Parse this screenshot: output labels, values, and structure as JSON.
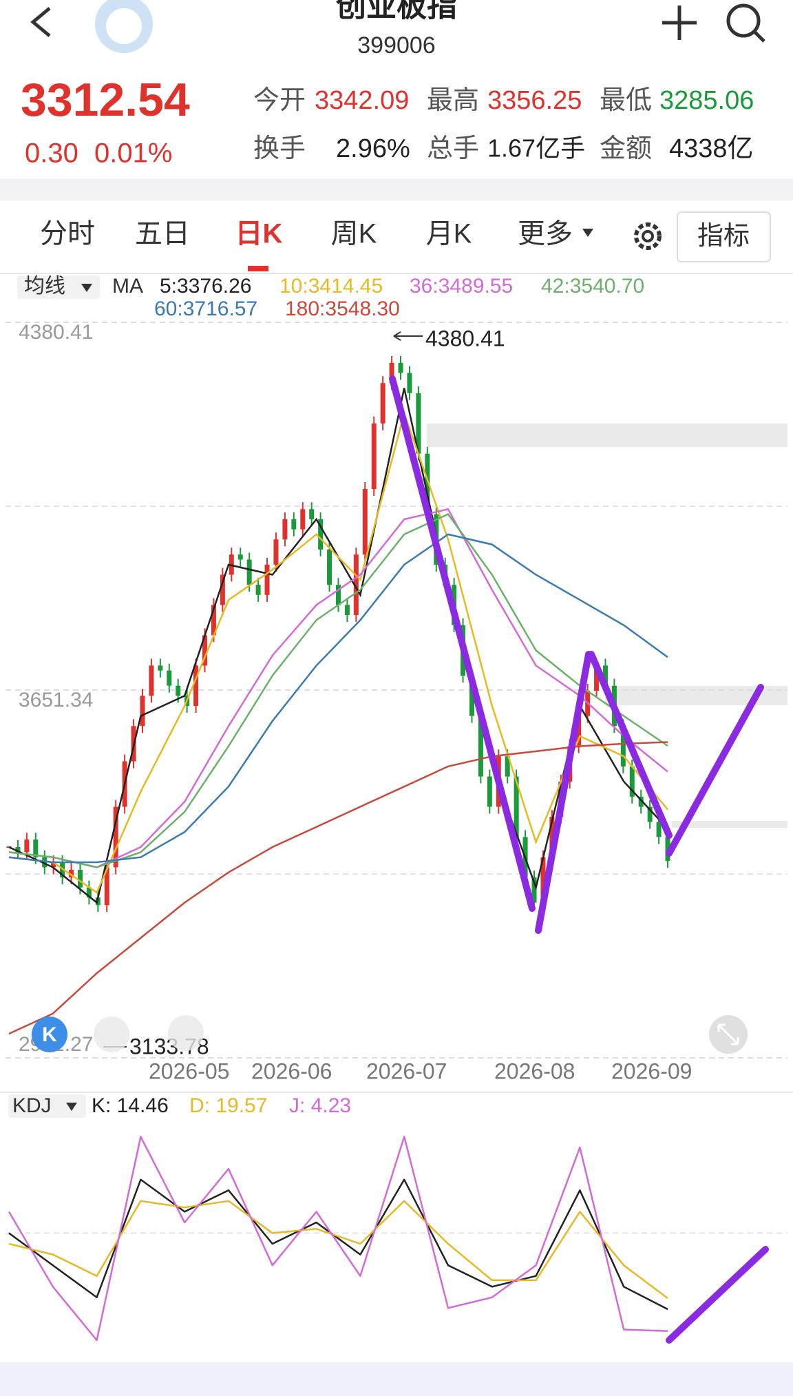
{
  "header": {
    "title": "创业板指",
    "code": "399006"
  },
  "quote": {
    "price": "3312.54",
    "change": "0.30",
    "change_pct": "0.01%",
    "stats": [
      {
        "label": "今开",
        "value": "3342.09"
      },
      {
        "label": "最高",
        "value": "3356.25"
      },
      {
        "label": "最低",
        "value": "3285.06"
      },
      {
        "label": "换手",
        "value": "2.96%"
      },
      {
        "label": "总手",
        "value": "1.67亿手"
      },
      {
        "label": "金额",
        "value": "4338亿"
      }
    ]
  },
  "tabs": [
    "分时",
    "五日",
    "日K",
    "周K",
    "月K",
    "更多"
  ],
  "indicator_button": "指标",
  "chart_data": [
    {
      "type": "candlestick",
      "ma_selector": "均线",
      "ma_label": "MA",
      "ylim": [
        2922.27,
        4380.41
      ],
      "yticks": [
        4380.41,
        3651.34,
        2922.27
      ],
      "xticks": [
        "2026-05",
        "2026-06",
        "2026-07",
        "2026-08",
        "2026-09"
      ],
      "annotations": [
        4380.41,
        3133.78
      ],
      "up_color": "#e0322d",
      "down_color": "#1a9a3a",
      "close": [
        3340,
        3330,
        3355,
        3320,
        3300,
        3310,
        3280,
        3295,
        3260,
        3240,
        3225,
        3300,
        3420,
        3510,
        3580,
        3640,
        3700,
        3690,
        3660,
        3640,
        3620,
        3700,
        3760,
        3820,
        3880,
        3920,
        3910,
        3860,
        3840,
        3900,
        3950,
        3990,
        3970,
        4010,
        3990,
        3930,
        3860,
        3820,
        3800,
        3920,
        4050,
        4180,
        4260,
        4300,
        4280,
        4240,
        4120,
        4000,
        3900,
        3860,
        3780,
        3680,
        3600,
        3480,
        3420,
        3520,
        3480,
        3360,
        3280,
        3230,
        3320,
        3400,
        3470,
        3540,
        3600,
        3650,
        3700,
        3660,
        3580,
        3500,
        3440,
        3420,
        3390,
        3360,
        3312.54
      ],
      "series": [
        {
          "name": "5:3376.26",
          "color": "#222222",
          "values": [
            3340,
            3300,
            3230,
            3600,
            3640,
            3900,
            3880,
            3990,
            3840,
            4250,
            3850,
            3500,
            3260,
            3620,
            3470,
            3376.26
          ]
        },
        {
          "name": "10:3414.45",
          "color": "#e8b923",
          "values": [
            3320,
            3310,
            3250,
            3450,
            3620,
            3830,
            3890,
            3960,
            3870,
            4200,
            3950,
            3620,
            3350,
            3560,
            3520,
            3414.45
          ]
        },
        {
          "name": "36:3489.55",
          "color": "#d46ad8",
          "values": [
            3330,
            3320,
            3300,
            3340,
            3430,
            3580,
            3720,
            3820,
            3880,
            3990,
            4010,
            3850,
            3700,
            3640,
            3560,
            3489.55
          ]
        },
        {
          "name": "42:3540.70",
          "color": "#6bb06b",
          "values": [
            3330,
            3320,
            3300,
            3330,
            3410,
            3540,
            3680,
            3790,
            3850,
            3960,
            4000,
            3880,
            3730,
            3660,
            3600,
            3540.7
          ]
        },
        {
          "name": "60:3716.57",
          "color": "#3a7bb0",
          "values": [
            3320,
            3310,
            3310,
            3320,
            3370,
            3460,
            3590,
            3700,
            3790,
            3900,
            3960,
            3940,
            3880,
            3830,
            3780,
            3716.57
          ]
        },
        {
          "name": "180:3548.30",
          "color": "#c84a3a",
          "values": [
            2970,
            3010,
            3090,
            3160,
            3230,
            3290,
            3340,
            3380,
            3420,
            3460,
            3500,
            3520,
            3530,
            3540,
            3545,
            3548.3
          ]
        }
      ]
    },
    {
      "type": "line",
      "title": "KDJ",
      "ylim": [
        0,
        100
      ],
      "series": [
        {
          "name": "K: 14.46",
          "color": "#222222",
          "values": [
            50,
            35,
            20,
            75,
            60,
            70,
            45,
            55,
            40,
            75,
            35,
            25,
            30,
            70,
            25,
            14.46
          ]
        },
        {
          "name": "D: 19.57",
          "color": "#e8b923",
          "values": [
            45,
            40,
            30,
            65,
            62,
            65,
            50,
            52,
            45,
            65,
            45,
            28,
            28,
            60,
            35,
            19.57
          ]
        },
        {
          "name": "J: 4.23",
          "color": "#d46ad8",
          "values": [
            60,
            25,
            0,
            95,
            55,
            80,
            35,
            60,
            30,
            95,
            15,
            20,
            35,
            90,
            5,
            4.23
          ]
        }
      ]
    }
  ]
}
